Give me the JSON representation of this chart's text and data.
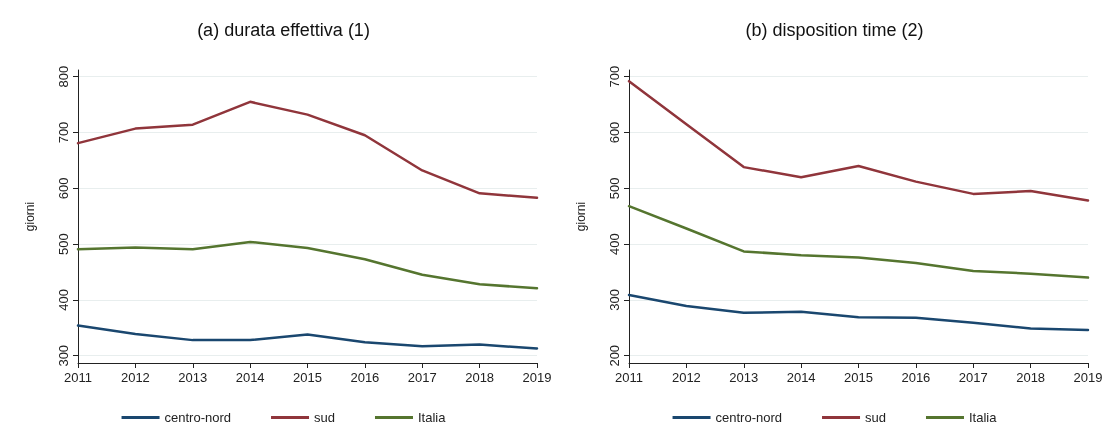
{
  "chart_data": [
    {
      "type": "line",
      "title": "(a) durata effettiva (1)",
      "ylabel": "giorni",
      "categories": [
        "2011",
        "2012",
        "2013",
        "2014",
        "2015",
        "2016",
        "2017",
        "2018",
        "2019"
      ],
      "ylim": [
        287,
        812
      ],
      "yticks": [
        300,
        400,
        500,
        600,
        700,
        800
      ],
      "grid": "y",
      "legend": "bottom",
      "series": [
        {
          "name": "centro-nord",
          "color": "#1a476f",
          "values": [
            354,
            339,
            328,
            328,
            338,
            324,
            317,
            320,
            313
          ]
        },
        {
          "name": "sud",
          "color": "#90353b",
          "values": [
            681,
            707,
            714,
            755,
            732,
            695,
            632,
            591,
            583
          ]
        },
        {
          "name": "Italia",
          "color": "#55752f",
          "values": [
            491,
            494,
            491,
            504,
            493,
            473,
            445,
            428,
            421
          ]
        }
      ]
    },
    {
      "type": "line",
      "title": "(b) disposition time (2)",
      "ylabel": "giorni",
      "categories": [
        "2011",
        "2012",
        "2013",
        "2014",
        "2015",
        "2016",
        "2017",
        "2018",
        "2019"
      ],
      "ylim": [
        187,
        712
      ],
      "yticks": [
        200,
        300,
        400,
        500,
        600,
        700
      ],
      "grid": "y",
      "legend": "bottom",
      "series": [
        {
          "name": "centro-nord",
          "color": "#1a476f",
          "values": [
            309,
            289,
            277,
            279,
            269,
            268,
            259,
            249,
            246
          ]
        },
        {
          "name": "sud",
          "color": "#90353b",
          "values": [
            692,
            615,
            538,
            520,
            540,
            512,
            490,
            495,
            478
          ]
        },
        {
          "name": "Italia",
          "color": "#55752f",
          "values": [
            468,
            428,
            387,
            380,
            376,
            366,
            352,
            347,
            340
          ]
        }
      ]
    }
  ]
}
